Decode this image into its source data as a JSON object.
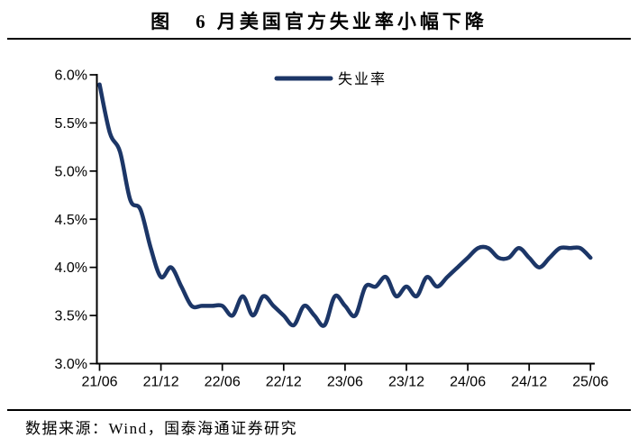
{
  "figure": {
    "title": "图　6 月美国官方失业率小幅下降",
    "source": "数据来源：Wind，国泰海通证券研究"
  },
  "colors": {
    "line": "#1c3667",
    "axis": "#000000",
    "text": "#000000",
    "background": "#ffffff"
  },
  "chart_data": {
    "type": "line",
    "title": "图 6月美国官方失业率小幅下降",
    "legend_position": "top-center",
    "grid": false,
    "x_frequency": "monthly",
    "x_start": "2021-06",
    "x_end": "2025-06",
    "x_tick_labels": [
      "21/06",
      "21/12",
      "22/06",
      "22/12",
      "23/06",
      "23/12",
      "24/06",
      "24/12",
      "25/06"
    ],
    "y_tick_labels": [
      "3.0%",
      "3.5%",
      "4.0%",
      "4.5%",
      "5.0%",
      "5.5%",
      "6.0%"
    ],
    "ylim": [
      3.0,
      6.0
    ],
    "ylabel": "",
    "xlabel": "",
    "series": [
      {
        "name": "失业率",
        "unit": "%",
        "color": "#1c3667",
        "values": [
          5.9,
          5.4,
          5.2,
          4.7,
          4.6,
          4.2,
          3.9,
          4.0,
          3.8,
          3.6,
          3.6,
          3.6,
          3.6,
          3.5,
          3.7,
          3.5,
          3.7,
          3.6,
          3.5,
          3.4,
          3.6,
          3.5,
          3.4,
          3.7,
          3.6,
          3.5,
          3.8,
          3.8,
          3.9,
          3.7,
          3.8,
          3.7,
          3.9,
          3.8,
          3.9,
          4.0,
          4.1,
          4.2,
          4.2,
          4.1,
          4.1,
          4.2,
          4.1,
          4.0,
          4.1,
          4.2,
          4.2,
          4.2,
          4.1
        ]
      }
    ]
  }
}
